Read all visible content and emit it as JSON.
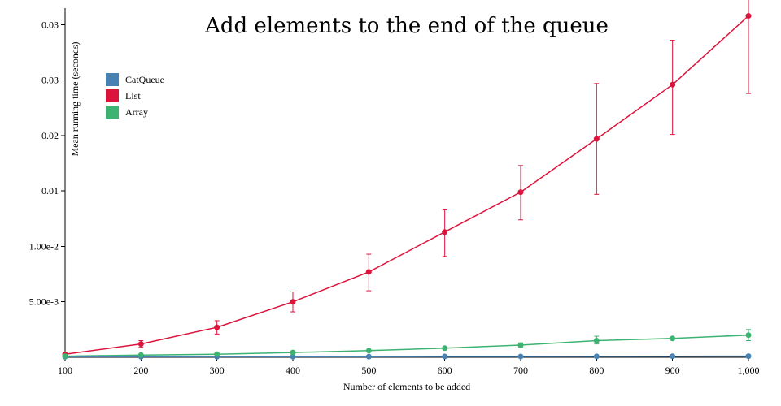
{
  "chart_data": {
    "type": "line",
    "title": "Add elements to the end of the queue",
    "xlabel": "Number of elements to be added",
    "ylabel": "Mean running time (seconds)",
    "x": [
      100,
      200,
      300,
      400,
      500,
      600,
      700,
      800,
      900,
      1000
    ],
    "xticks": [
      "100",
      "200",
      "300",
      "400",
      "500",
      "600",
      "700",
      "800",
      "900",
      "1,000"
    ],
    "yticks": [
      {
        "value": 0.005,
        "label": "5.00e-3"
      },
      {
        "value": 0.01,
        "label": "1.00e-2"
      },
      {
        "value": 0.015,
        "label": "0.01"
      },
      {
        "value": 0.02,
        "label": "0.02"
      },
      {
        "value": 0.025,
        "label": "0.03"
      },
      {
        "value": 0.03,
        "label": "0.03"
      }
    ],
    "xlim": [
      100,
      1000
    ],
    "ylim": [
      0,
      0.0315
    ],
    "grid": false,
    "legend_position": "top-left",
    "series": [
      {
        "name": "CatQueue",
        "color": "#4682b4",
        "values": [
          5e-05,
          5e-05,
          5e-05,
          6e-05,
          6e-05,
          7e-05,
          7e-05,
          8e-05,
          9e-05,
          0.0001
        ],
        "err_low": [
          5e-05,
          5e-05,
          5e-05,
          6e-05,
          6e-05,
          7e-05,
          7e-05,
          8e-05,
          9e-05,
          0.0001
        ],
        "err_high": [
          5e-05,
          5e-05,
          5e-05,
          6e-05,
          6e-05,
          7e-05,
          7e-05,
          8e-05,
          9e-05,
          0.0001
        ]
      },
      {
        "name": "List",
        "color": "#dc143c",
        "values": [
          0.00027,
          0.0012,
          0.0027,
          0.005,
          0.0077,
          0.0113,
          0.0149,
          0.0197,
          0.0246,
          0.0308
        ],
        "err_low": [
          0.00027,
          0.0009,
          0.0021,
          0.0041,
          0.006,
          0.0091,
          0.0124,
          0.0147,
          0.0201,
          0.0238
        ],
        "err_high": [
          0.00027,
          0.0015,
          0.0033,
          0.0059,
          0.0093,
          0.0133,
          0.0173,
          0.0247,
          0.0286,
          0.0345
        ]
      },
      {
        "name": "Array",
        "color": "#3cb371",
        "values": [
          0.0001,
          0.0002,
          0.00028,
          0.00043,
          0.0006,
          0.00082,
          0.0011,
          0.0015,
          0.0017,
          0.002
        ],
        "err_low": [
          0.0001,
          0.00017,
          0.00025,
          0.0004,
          0.00056,
          0.00077,
          0.0009,
          0.0012,
          0.0016,
          0.0015
        ],
        "err_high": [
          0.0001,
          0.00023,
          0.00031,
          0.00046,
          0.00064,
          0.00087,
          0.0013,
          0.0019,
          0.0018,
          0.0025
        ]
      }
    ]
  }
}
